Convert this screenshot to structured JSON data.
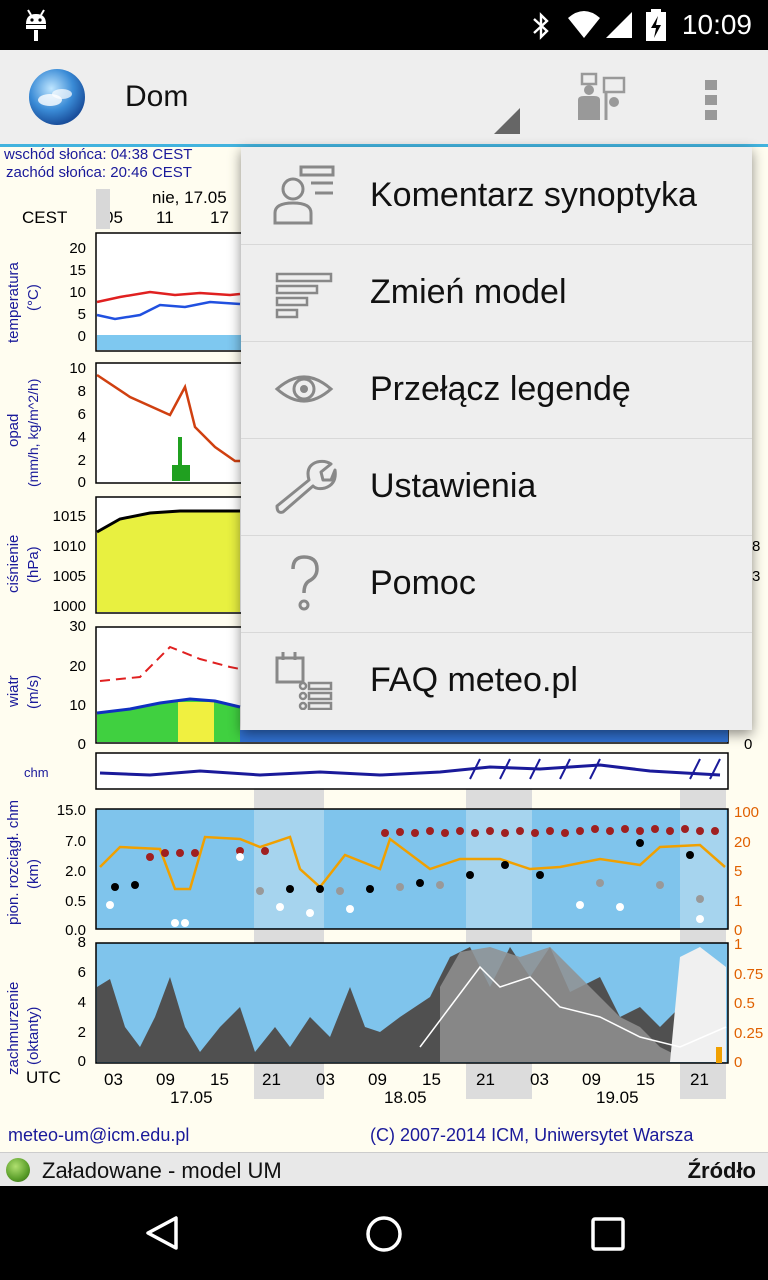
{
  "statusbar": {
    "time": "10:09"
  },
  "actionbar": {
    "title": "Dom",
    "pins_icon": "pins-icon",
    "overflow_icon": "overflow-menu-icon"
  },
  "meteogram": {
    "sunrise": "wschód słońca: 04:38 CEST",
    "sunset": "zachód słońca: 20:46 CEST",
    "cest_label": "CEST",
    "cest_date": "nie, 17.05",
    "cest_hours": [
      "05",
      "11",
      "17"
    ],
    "panels": {
      "temperature": {
        "label": "temperatura",
        "unit": "(°C)",
        "ticks": [
          "20",
          "15",
          "10",
          "5",
          "0"
        ]
      },
      "precip": {
        "label": "opad",
        "unit": "(mm/h, kg/m^2/h)",
        "ticks": [
          "10",
          "8",
          "6",
          "4",
          "2",
          "0"
        ]
      },
      "pressure": {
        "label": "ciśnienie",
        "unit": "(hPa)",
        "ticks": [
          "1015",
          "1010",
          "1005",
          "1000"
        ]
      },
      "wind": {
        "label": "wiatr",
        "unit": "(m/s)",
        "ticks": [
          "30",
          "20",
          "10",
          "0"
        ],
        "right_ticks": [
          "0"
        ]
      },
      "clouds": {
        "label": "pion. rozciągł. chm",
        "unit": "(km)",
        "ticks": [
          "15.0",
          "7.0",
          "2.0",
          "0.5",
          "0.0"
        ],
        "right_ticks": [
          "100",
          "20",
          "5",
          "1",
          "0"
        ]
      },
      "cover": {
        "label": "zachmurzenie",
        "unit": "(oktanty)",
        "ticks": [
          "8",
          "6",
          "4",
          "2",
          "0"
        ],
        "right_ticks": [
          "1",
          "0.75",
          "0.5",
          "0.25",
          "0"
        ]
      }
    },
    "utc_label": "UTC",
    "utc_hours": [
      "03",
      "09",
      "15",
      "21",
      "03",
      "09",
      "15",
      "21",
      "03",
      "09",
      "15",
      "21"
    ],
    "dates": [
      "17.05",
      "18.05",
      "19.05"
    ],
    "footer_email": "meteo-um@icm.edu.pl",
    "footer_copyright": "(C) 2007-2014 ICM, Uniwersytet Warsza"
  },
  "menu": {
    "items": [
      {
        "label": "Komentarz synoptyka",
        "icon": "synoptic-comment-icon"
      },
      {
        "label": "Zmień model",
        "icon": "change-model-icon"
      },
      {
        "label": "Przełącz legendę",
        "icon": "eye-icon"
      },
      {
        "label": "Ustawienia",
        "icon": "wrench-icon"
      },
      {
        "label": "Pomoc",
        "icon": "question-icon"
      },
      {
        "label": "FAQ meteo.pl",
        "icon": "faq-icon"
      }
    ]
  },
  "status": {
    "text": "Załadowane - model UM",
    "source": "Źródło",
    "indicator_color": "#5a9e2a"
  },
  "colors": {
    "accent": "#42b3de",
    "menu_bg": "#eeeeee"
  }
}
